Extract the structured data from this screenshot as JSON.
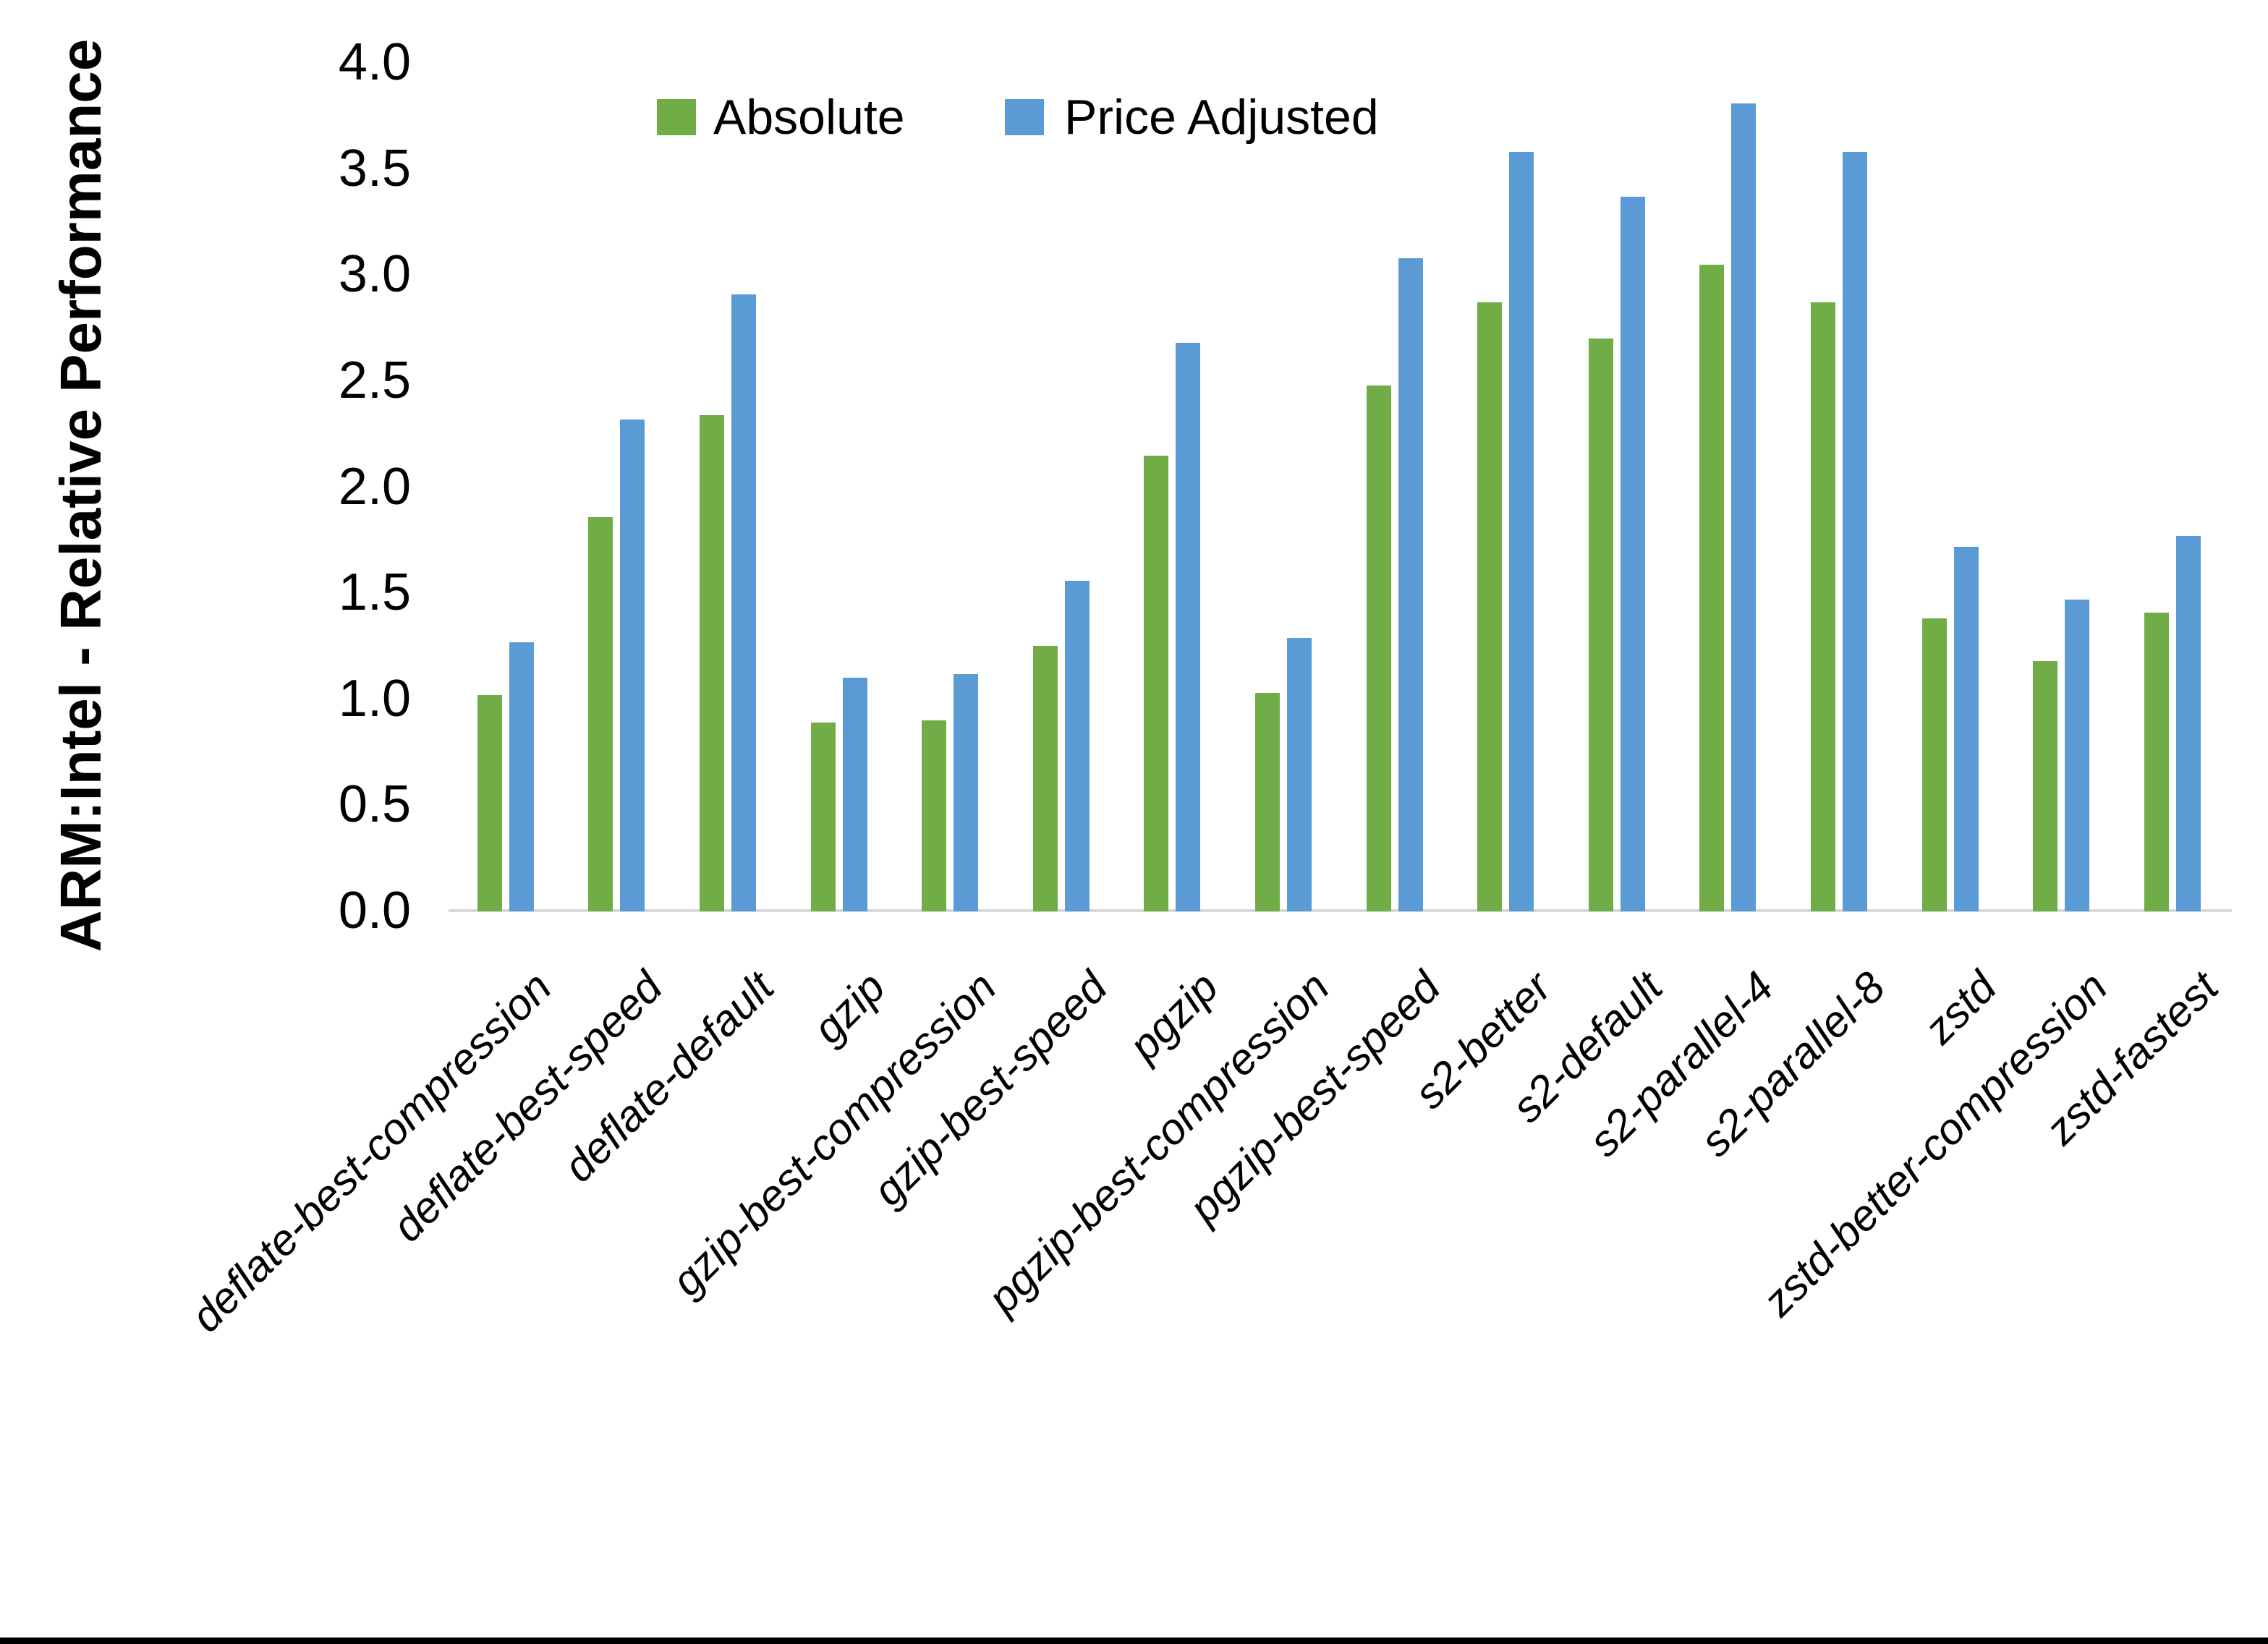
{
  "chart_data": {
    "type": "bar",
    "title": "",
    "xlabel": "",
    "ylabel": "ARM:Intel - Relative Performance",
    "ylim": [
      0.0,
      4.0
    ],
    "ytick_labels": [
      "0.0",
      "0.5",
      "1.0",
      "1.5",
      "2.0",
      "2.5",
      "3.0",
      "3.5",
      "4.0"
    ],
    "grid": false,
    "legend_position": "top-center",
    "categories": [
      "deflate-best-compression",
      "deflate-best-speed",
      "deflate-default",
      "gzip",
      "gzip-best-compression",
      "gzip-best-speed",
      "pgzip",
      "pgzip-best-compression",
      "pgzip-best-speed",
      "s2-better",
      "s2-default",
      "s2-parallel-4",
      "s2-parallel-8",
      "zstd",
      "zstd-better-compression",
      "zstd-fastest"
    ],
    "series": [
      {
        "name": "Absolute",
        "color": "#70AD47",
        "values": [
          1.02,
          1.86,
          2.34,
          0.89,
          0.9,
          1.25,
          2.15,
          1.03,
          2.48,
          2.87,
          2.7,
          3.05,
          2.87,
          1.38,
          1.18,
          1.41
        ]
      },
      {
        "name": "Price Adjusted",
        "color": "#5B9BD5",
        "values": [
          1.27,
          2.32,
          2.91,
          1.1,
          1.12,
          1.56,
          2.68,
          1.29,
          3.08,
          3.58,
          3.37,
          3.81,
          3.58,
          1.72,
          1.47,
          1.77
        ]
      }
    ]
  },
  "colors": {
    "absolute": "#70AD47",
    "price_adjusted": "#5B9BD5",
    "axis_line": "#d9d9d9",
    "bottom_border": "#000000"
  }
}
